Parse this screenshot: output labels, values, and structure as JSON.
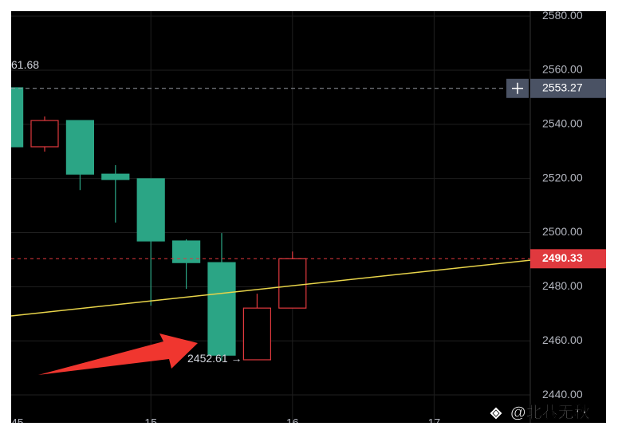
{
  "chart_data": {
    "type": "candlestick",
    "ylim": [
      2429.7,
      2581.8
    ],
    "yticks": [
      {
        "value": 2440,
        "label": "2440.00"
      },
      {
        "value": 2460,
        "label": "2460.00"
      },
      {
        "value": 2480,
        "label": "2480.00"
      },
      {
        "value": 2500,
        "label": "2500.00"
      },
      {
        "value": 2520,
        "label": "2520.00"
      },
      {
        "value": 2540,
        "label": "2540.00"
      },
      {
        "value": 2560,
        "label": "2560.00"
      },
      {
        "value": 2580,
        "label": "2580.00"
      }
    ],
    "x_labels": [
      "45",
      "15",
      "16",
      "17"
    ],
    "up_color": "#e0393e",
    "down_color": "#2ba585",
    "open": [
      2553.5,
      2531.7,
      2541.4,
      2521.6,
      2519.9,
      2496.9,
      2488.9,
      2453.0,
      2472.1
    ],
    "high": [
      2553.5,
      2542.9,
      2541.4,
      2524.9,
      2519.9,
      2497.5,
      2499.8,
      2477.4,
      2493.0
    ],
    "low": [
      2531.7,
      2529.9,
      2515.7,
      2503.7,
      2473.0,
      2479.2,
      2452.61,
      2453.0,
      2472.1
    ],
    "close": [
      2531.7,
      2541.4,
      2521.6,
      2519.6,
      2496.9,
      2488.9,
      2454.7,
      2472.1,
      2490.33
    ],
    "ma_line": {
      "color": "#e8d44a",
      "values": [
        2469.2,
        2489.8
      ]
    },
    "high_label": "61.68",
    "low_label": {
      "value": 2452.61,
      "label": "2452.61 →"
    },
    "crosshair": {
      "value": 2553.27,
      "label": "2553.27"
    },
    "last_price": {
      "value": 2490.33,
      "label": "2490.33"
    },
    "watermark": "@北巷无秋"
  }
}
